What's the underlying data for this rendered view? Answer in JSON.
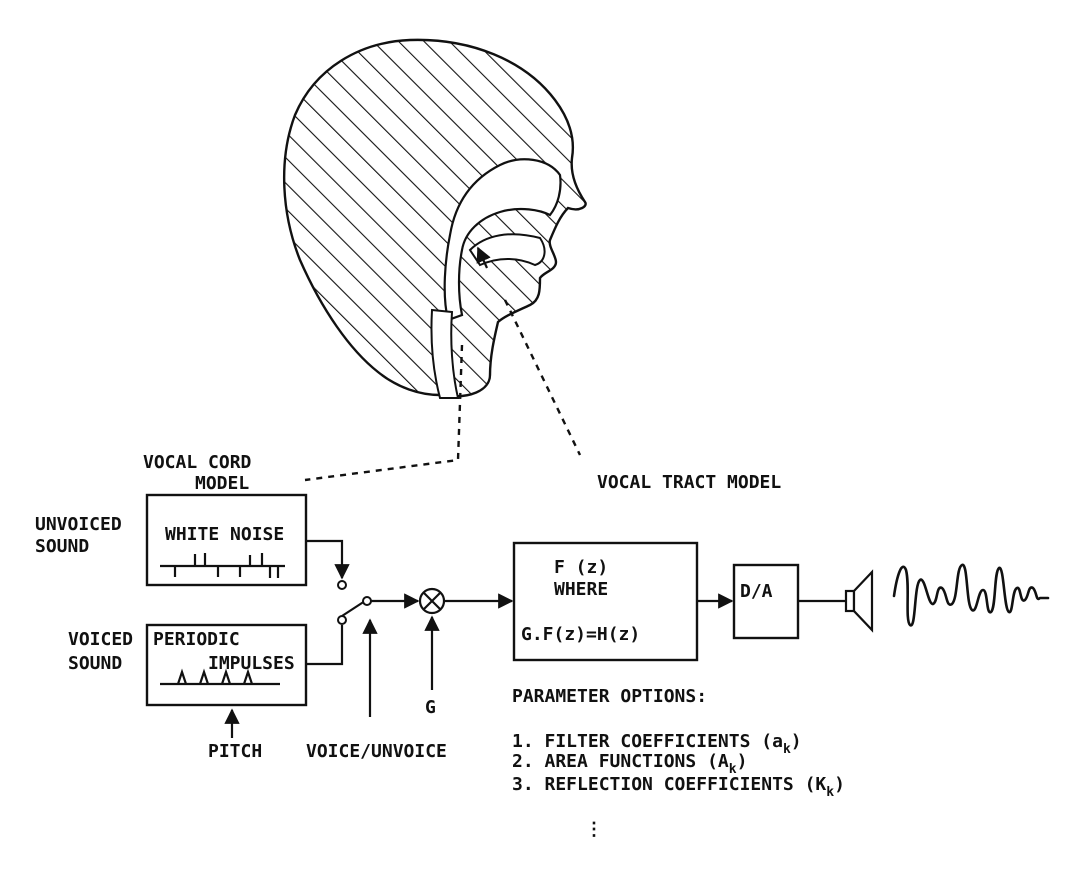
{
  "head_labels": {},
  "vocal_cord_model": {
    "title_line1": "VOCAL CORD",
    "title_line2": "MODEL"
  },
  "sources": {
    "unvoiced_line1": "UNVOICED",
    "unvoiced_line2": "SOUND",
    "voiced_line1": "VOICED",
    "voiced_line2": "SOUND",
    "white_noise": "WHITE NOISE",
    "periodic": "PERIODIC",
    "impulses": "IMPULSES"
  },
  "controls": {
    "pitch": "PITCH",
    "voice_unvoice": "VOICE/UNVOICE",
    "gain": "G"
  },
  "vocal_tract_model": {
    "title": "VOCAL TRACT MODEL",
    "line1": "F (z)",
    "line2": "WHERE",
    "line3": "G.F(z)=H(z)"
  },
  "converter": {
    "label": "D/A"
  },
  "parameter_options": {
    "heading": "PARAMETER OPTIONS:",
    "items": [
      {
        "text": "1. FILTER COEFFICIENTS (a",
        "sub": "k",
        "close": ")"
      },
      {
        "text": "2. AREA FUNCTIONS  (A",
        "sub": "k",
        "close": ")"
      },
      {
        "text": "3. REFLECTION COEFFICIENTS (K",
        "sub": "k",
        "close": ")"
      }
    ],
    "ellipsis": "⋮"
  }
}
